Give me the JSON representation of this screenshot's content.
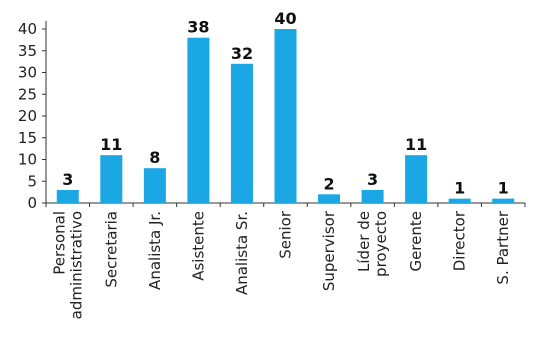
{
  "chart_data": {
    "type": "bar",
    "categories": [
      [
        "Personal",
        "administrativo"
      ],
      [
        "Secretaria"
      ],
      [
        "Analista Jr."
      ],
      [
        "Asistente"
      ],
      [
        "Analista Sr."
      ],
      [
        "Senior"
      ],
      [
        "Supervisor"
      ],
      [
        "Líder de",
        "proyecto"
      ],
      [
        "Gerente"
      ],
      [
        "Director"
      ],
      [
        "S. Partner"
      ]
    ],
    "values": [
      3,
      11,
      8,
      38,
      32,
      40,
      2,
      3,
      11,
      1,
      1
    ],
    "ylim": [
      0,
      40
    ],
    "yticks": [
      "0",
      "5",
      "10",
      "15",
      "20",
      "25",
      "30",
      "35",
      "40"
    ],
    "grid": false,
    "legend": "none",
    "bar_color": "#1aa7e4",
    "axis_color": "#333333"
  }
}
